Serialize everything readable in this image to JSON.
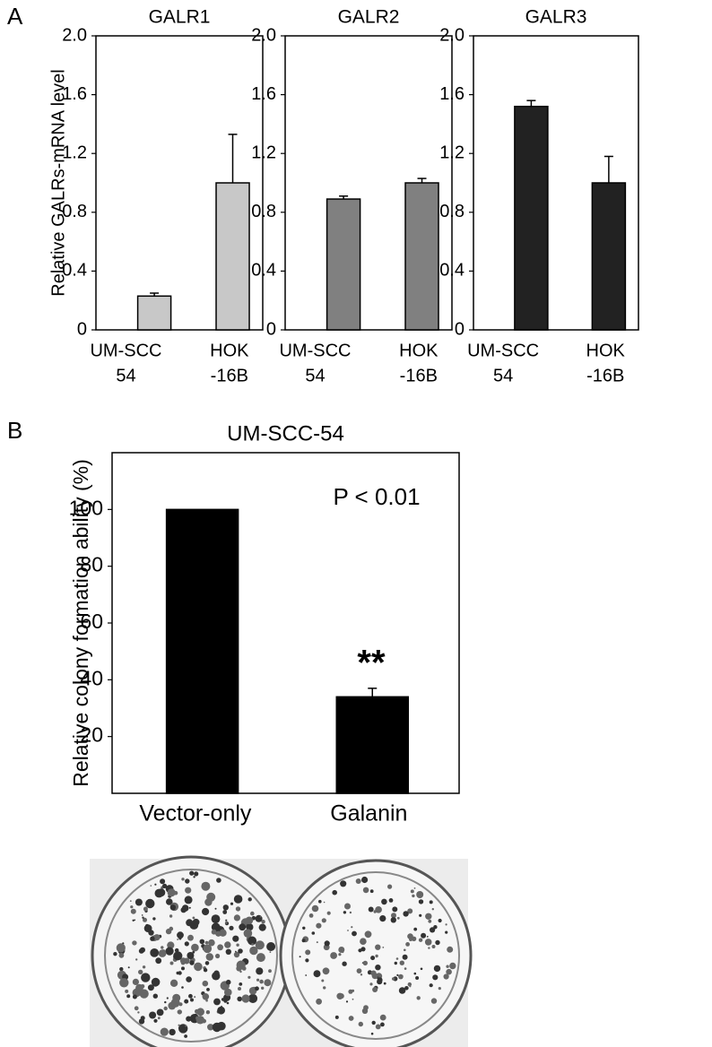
{
  "panel_labels": [
    "A",
    "B"
  ],
  "chart_data": [
    {
      "type": "bar",
      "title": "GALR1",
      "y_label": "Relative GALRs-mRNA  level",
      "categories": [
        [
          "UM-SCC",
          "54"
        ],
        [
          "HOK",
          "-16B"
        ]
      ],
      "values": [
        0.23,
        1.0
      ],
      "errors": [
        0.02,
        0.33
      ],
      "color": "#c8c8c8",
      "ylim": [
        0,
        2
      ],
      "yticks": [
        0,
        0.4,
        0.8,
        1.2,
        1.6,
        {
          "value": 2,
          "label": "2.0"
        }
      ]
    },
    {
      "type": "bar",
      "title": "GALR2",
      "categories": [
        [
          "UM-SCC",
          "54"
        ],
        [
          "HOK",
          "-16B"
        ]
      ],
      "values": [
        0.89,
        1.0
      ],
      "errors": [
        0.02,
        0.03
      ],
      "color": "#808080",
      "ylim": [
        0,
        2
      ],
      "yticks": [
        0,
        0.4,
        0.8,
        1.2,
        1.6,
        {
          "value": 2,
          "label": "2.0"
        }
      ]
    },
    {
      "type": "bar",
      "title": "GALR3",
      "categories": [
        [
          "UM-SCC",
          "54"
        ],
        [
          "HOK",
          "-16B"
        ]
      ],
      "values": [
        1.52,
        1.0
      ],
      "errors": [
        0.04,
        0.18
      ],
      "color": "#222222",
      "ylim": [
        0,
        2
      ],
      "yticks": [
        0,
        0.4,
        0.8,
        1.2,
        1.6,
        {
          "value": 2,
          "label": "2.0"
        }
      ]
    },
    {
      "type": "bar",
      "title": "UM-SCC-54",
      "y_label": "Relative colony formation ability (%)",
      "categories": [
        [
          "Vector-only"
        ],
        [
          "Galanin"
        ]
      ],
      "values": [
        100,
        34
      ],
      "errors": [
        null,
        3
      ],
      "color": "#000000",
      "ylim": [
        0,
        120
      ],
      "yticks": [
        20,
        40,
        60,
        80,
        100
      ],
      "annotations": [
        "P < 0.01",
        "**"
      ]
    }
  ]
}
